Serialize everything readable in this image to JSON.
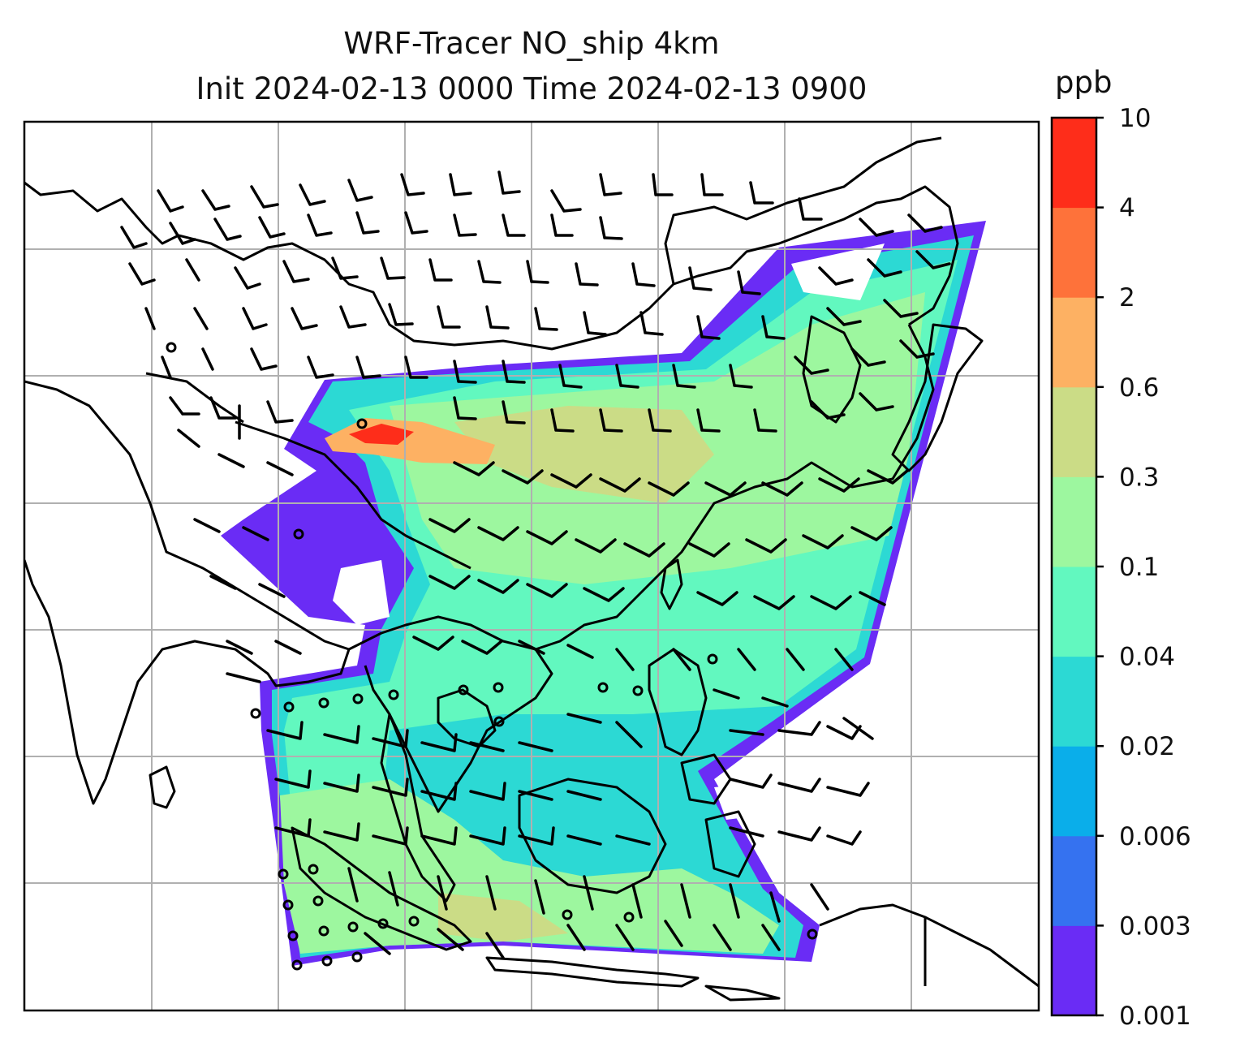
{
  "title": {
    "line1": "WRF-Tracer NO_ship 4km",
    "line2": "Init 2024-02-13 0000 Time 2024-02-13 0900"
  },
  "colorbar": {
    "unit": "ppb",
    "levels": [
      "0.001",
      "0.003",
      "0.006",
      "0.02",
      "0.04",
      "0.1",
      "0.3",
      "0.6",
      "2",
      "4",
      "10"
    ],
    "colors": [
      "#6a2cf5",
      "#3572f0",
      "#0aaeea",
      "#2cd9d4",
      "#62f8bf",
      "#9df79f",
      "#cbdc86",
      "#fdb163",
      "#fe723a",
      "#fe2d1a"
    ]
  },
  "map": {
    "land_outline_color": "#000000",
    "gridline_color": "#b0b0b0",
    "wind_barb_color": "#000000"
  }
}
